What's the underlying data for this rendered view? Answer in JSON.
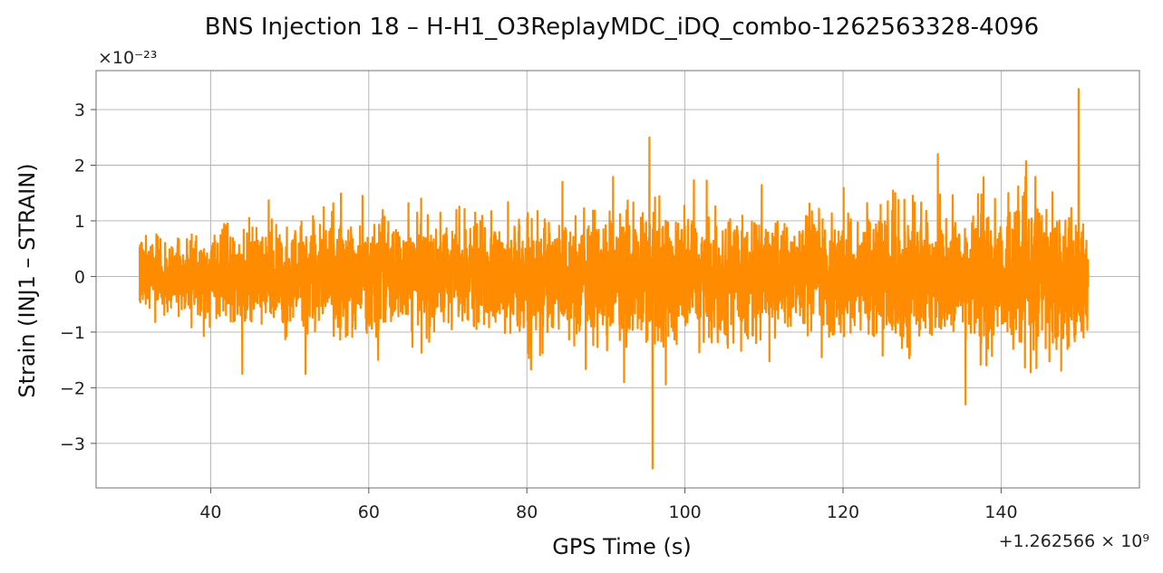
{
  "chart_data": {
    "type": "line",
    "title": "BNS Injection 18 – H-H1_O3ReplayMDC_iDQ_combo-1262563328-4096",
    "xlabel": "GPS Time (s)",
    "ylabel": "Strain (INJ1 – STRAIN)",
    "x_offset_text": "+1.262566 × 10⁹",
    "y_scale_text": "×10⁻²³",
    "x_range": [
      31,
      151
    ],
    "xlim": [
      25.5,
      157.5
    ],
    "ylim": [
      -3.8,
      3.7
    ],
    "x_ticks": [
      40,
      60,
      80,
      100,
      120,
      140
    ],
    "y_ticks": [
      -3,
      -2,
      -1,
      0,
      1,
      2,
      3
    ],
    "x_tick_labels": [
      "40",
      "60",
      "80",
      "100",
      "120",
      "140"
    ],
    "y_tick_labels": [
      "−3",
      "−2",
      "−1",
      "0",
      "1",
      "2",
      "3"
    ],
    "grid": true,
    "series": [
      {
        "color": "#ff8c00",
        "envelope_abs": [
          0.95,
          1.0,
          1.05,
          1.1,
          1.2,
          1.25,
          1.25,
          1.3,
          1.35,
          1.35,
          1.3,
          1.4,
          1.35,
          1.35,
          1.45,
          1.5,
          1.5,
          1.55,
          1.6,
          1.7,
          1.75,
          1.6,
          1.5,
          1.5,
          1.45,
          1.45,
          1.45,
          1.55,
          1.6,
          1.65,
          1.7,
          1.75,
          1.8,
          1.85,
          1.85,
          1.8,
          1.8
        ],
        "extreme_points": [
          {
            "x": 95.5,
            "y": 2.5
          },
          {
            "x": 95.9,
            "y": -3.45
          },
          {
            "x": 92.3,
            "y": -1.9
          },
          {
            "x": 149.8,
            "y": 3.37
          },
          {
            "x": 135.5,
            "y": -2.3
          },
          {
            "x": 132.0,
            "y": 2.2
          },
          {
            "x": 44.0,
            "y": -1.75
          },
          {
            "x": 52.0,
            "y": -1.75
          },
          {
            "x": 84.5,
            "y": 1.7
          }
        ]
      }
    ]
  }
}
